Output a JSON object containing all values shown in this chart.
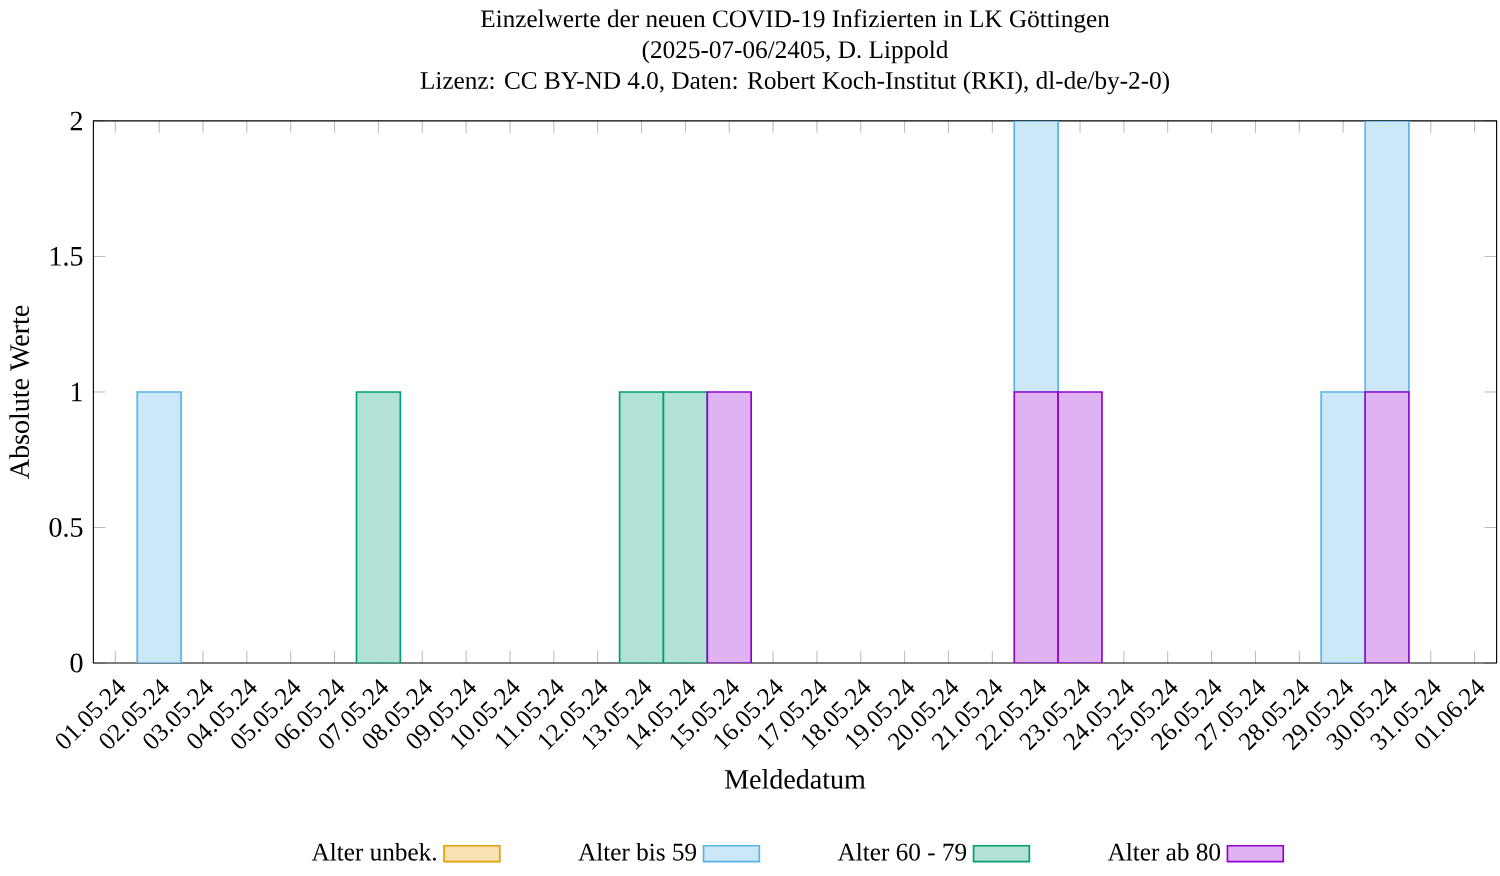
{
  "chart_data": {
    "type": "bar",
    "stacked": true,
    "title": "Einzelwerte der neuen COVID-19 Infizierten in LK Göttingen",
    "subtitle": "(2025-07-06/2405, D. Lippold",
    "annotations": [
      "Lizenz: CC BY-ND 4.0, Daten: Robert Koch-Institut (RKI), dl-de/by-2-0)"
    ],
    "xlabel": "Meldedatum",
    "ylabel": "Absolute Werte",
    "categories": [
      "01.05.24",
      "02.05.24",
      "03.05.24",
      "04.05.24",
      "05.05.24",
      "06.05.24",
      "07.05.24",
      "08.05.24",
      "09.05.24",
      "10.05.24",
      "11.05.24",
      "12.05.24",
      "13.05.24",
      "14.05.24",
      "15.05.24",
      "16.05.24",
      "17.05.24",
      "18.05.24",
      "19.05.24",
      "20.05.24",
      "21.05.24",
      "22.05.24",
      "23.05.24",
      "24.05.24",
      "25.05.24",
      "26.05.24",
      "27.05.24",
      "28.05.24",
      "29.05.24",
      "30.05.24",
      "31.05.24",
      "01.06.24"
    ],
    "series": [
      {
        "name": "Alter ab 80",
        "color": "#9400d3",
        "values": [
          0,
          0,
          0,
          0,
          0,
          0,
          0,
          0,
          0,
          0,
          0,
          0,
          0,
          0,
          1,
          0,
          0,
          0,
          0,
          0,
          0,
          1,
          1,
          0,
          0,
          0,
          0,
          0,
          0,
          1,
          0,
          0
        ]
      },
      {
        "name": "Alter 60 - 79",
        "color": "#009e73",
        "values": [
          0,
          0,
          0,
          0,
          0,
          0,
          1,
          0,
          0,
          0,
          0,
          0,
          1,
          1,
          0,
          0,
          0,
          0,
          0,
          0,
          0,
          0,
          0,
          0,
          0,
          0,
          0,
          0,
          0,
          0,
          0,
          0
        ]
      },
      {
        "name": "Alter bis 59",
        "color": "#56b4e9",
        "values": [
          0,
          1,
          0,
          0,
          0,
          0,
          0,
          0,
          0,
          0,
          0,
          0,
          0,
          0,
          0,
          0,
          0,
          0,
          0,
          0,
          0,
          1,
          0,
          0,
          0,
          0,
          0,
          0,
          1,
          1,
          0,
          0
        ]
      },
      {
        "name": "Alter unbek.",
        "color": "#e69f00",
        "values": [
          0,
          0,
          0,
          0,
          0,
          0,
          0,
          0,
          0,
          0,
          0,
          0,
          0,
          0,
          0,
          0,
          0,
          0,
          0,
          0,
          0,
          0,
          0,
          0,
          0,
          0,
          0,
          0,
          0,
          0,
          0,
          0
        ]
      }
    ],
    "ylim": [
      0,
      2
    ],
    "yticks": [
      0,
      0.5,
      1,
      1.5,
      2
    ],
    "grid": false,
    "legend": "bottom"
  }
}
